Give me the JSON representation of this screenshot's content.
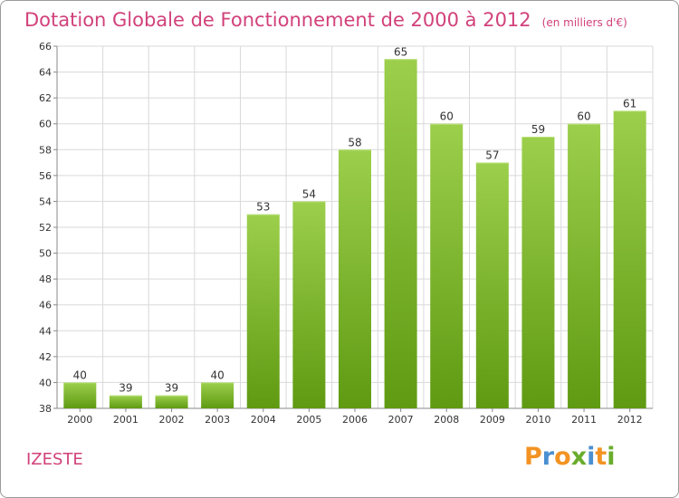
{
  "header": {
    "title": "Dotation Globale de Fonctionnement de 2000 à 2012",
    "unit": "(en milliers d'€)"
  },
  "footer": {
    "commune": "IZESTE",
    "brand": "Proxiti"
  },
  "colors": {
    "title": "#d1417a",
    "bar_light": "#9ccf4c",
    "bar_dark": "#5f9a12",
    "grid": "#d9d9d9",
    "brand_letters": [
      "#f39323",
      "#4a8fd0",
      "#f39323",
      "#6aac2c",
      "#4a8fd0",
      "#f39323",
      "#6aac2c"
    ]
  },
  "chart_data": {
    "type": "bar",
    "title": "Dotation Globale de Fonctionnement de 2000 à 2012",
    "categories": [
      "2000",
      "2001",
      "2002",
      "2003",
      "2004",
      "2005",
      "2006",
      "2007",
      "2008",
      "2009",
      "2010",
      "2011",
      "2012"
    ],
    "values": [
      40,
      39,
      39,
      40,
      53,
      54,
      58,
      65,
      60,
      57,
      59,
      60,
      61
    ],
    "xlabel": "",
    "ylabel": "",
    "ylim": [
      38,
      66
    ],
    "yticks": [
      38,
      40,
      42,
      44,
      46,
      48,
      50,
      52,
      54,
      56,
      58,
      60,
      62,
      64,
      66
    ],
    "grid": true,
    "data_labels": true
  }
}
